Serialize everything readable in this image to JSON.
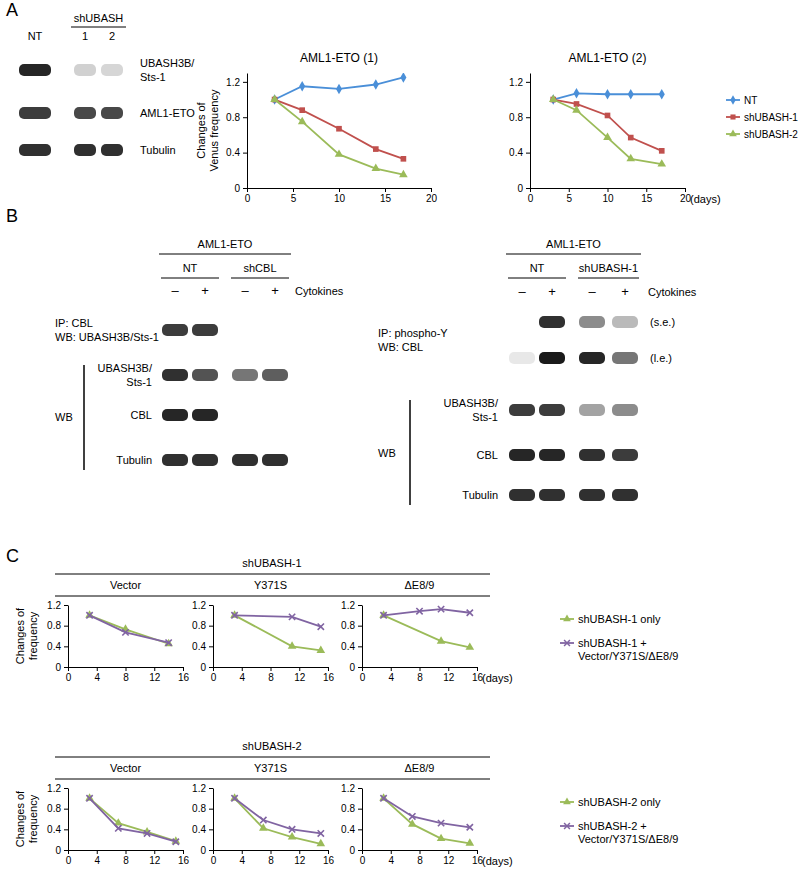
{
  "panel_labels": [
    "A",
    "B",
    "C"
  ],
  "blots": [
    {
      "groups": [
        {
          "label": "NT",
          "lanes": [
            0
          ]
        },
        {
          "label": "shUBASH",
          "lanes": [
            1,
            2
          ],
          "sublabels": [
            "1",
            "2"
          ]
        }
      ],
      "rows": [
        {
          "label": "UBASH3B/\nSts-1",
          "bands": [
            0.95,
            0.2,
            0.18
          ]
        },
        {
          "label": "AML1-ETO",
          "bands": [
            0.85,
            0.8,
            0.8
          ]
        },
        {
          "label": "Tubulin",
          "bands": [
            0.9,
            0.9,
            0.9
          ]
        }
      ]
    },
    {
      "header": "AML1-ETO",
      "groups": [
        {
          "label": "NT",
          "lanes": [
            0,
            1
          ]
        },
        {
          "label": "shCBL",
          "lanes": [
            2,
            3
          ]
        }
      ],
      "treatments": [
        "–",
        "+",
        "–",
        "+"
      ],
      "treatment_label": "Cytokines",
      "rows": [
        {
          "bands": [
            0.85,
            0.85,
            0,
            0
          ]
        },
        {
          "label": "UBASH3B/\nSts-1",
          "bands": [
            0.9,
            0.75,
            0.6,
            0.7
          ]
        },
        {
          "label": "CBL",
          "bands": [
            0.95,
            0.95,
            0,
            0
          ]
        },
        {
          "label": "Tubulin",
          "bands": [
            0.9,
            0.9,
            0.9,
            0.9
          ]
        }
      ],
      "row_groups": [
        {
          "label": "IP: CBL\nWB: UBASH3B/Sts-1",
          "rows": [
            0
          ]
        },
        {
          "label": "WB",
          "rows": [
            1,
            2,
            3
          ]
        }
      ]
    },
    {
      "header": "AML1-ETO",
      "groups": [
        {
          "label": "NT",
          "lanes": [
            0,
            1
          ]
        },
        {
          "label": "shUBASH-1",
          "lanes": [
            2,
            3
          ]
        }
      ],
      "treatments": [
        "–",
        "+",
        "–",
        "+"
      ],
      "treatment_label": "Cytokines",
      "rows": [
        {
          "tag": "(s.e.)",
          "bands": [
            0,
            0.9,
            0.5,
            0.3
          ]
        },
        {
          "tag": "(l.e.)",
          "bands": [
            0.1,
            1,
            0.95,
            0.6
          ]
        },
        {
          "label": "UBASH3B/\nSts-1",
          "bands": [
            0.85,
            0.85,
            0.4,
            0.5
          ]
        },
        {
          "label": "CBL",
          "bands": [
            0.95,
            0.95,
            0.9,
            0.85
          ]
        },
        {
          "label": "Tubulin",
          "bands": [
            0.9,
            0.9,
            0.9,
            0.9
          ]
        }
      ],
      "row_groups": [
        {
          "label": "IP: phospho-Y\nWB: CBL",
          "rows": [
            0,
            1
          ]
        },
        {
          "label": "WB",
          "rows": [
            2,
            3,
            4
          ]
        }
      ]
    }
  ],
  "panel_c": {
    "groups": [
      "shUBASH-1",
      "shUBASH-2"
    ]
  },
  "chart_data": [
    {
      "type": "line",
      "title": "AML1-ETO (1)",
      "ylabel": "Changes of\nVenus frequency",
      "x": [
        3,
        6,
        10,
        14,
        17
      ],
      "xlim": [
        0,
        20
      ],
      "xticks": [
        0,
        5,
        10,
        15,
        20
      ],
      "ylim": [
        0,
        1.3
      ],
      "yticks": [
        0,
        0.4,
        0.8,
        1.2
      ],
      "series": [
        {
          "color": "#4a8fd8",
          "marker": "diamond",
          "values": [
            1.0,
            1.15,
            1.12,
            1.17,
            1.25
          ]
        },
        {
          "color": "#c0504d",
          "marker": "square",
          "values": [
            1.0,
            0.88,
            0.67,
            0.44,
            0.33
          ]
        },
        {
          "color": "#9bbb59",
          "marker": "triangle",
          "values": [
            1.0,
            0.75,
            0.38,
            0.22,
            0.15
          ]
        }
      ]
    },
    {
      "type": "line",
      "title": "AML1-ETO (2)",
      "xlabel": "(days)",
      "x": [
        3,
        6,
        10,
        13,
        17
      ],
      "xlim": [
        0,
        20
      ],
      "xticks": [
        0,
        5,
        10,
        15,
        20
      ],
      "ylim": [
        0,
        1.3
      ],
      "yticks": [
        0,
        0.4,
        0.8,
        1.2
      ],
      "legend": "right",
      "series": [
        {
          "name": "NT",
          "color": "#4a8fd8",
          "marker": "diamond",
          "values": [
            1.0,
            1.07,
            1.06,
            1.06,
            1.06
          ]
        },
        {
          "name": "shUBASH-1",
          "color": "#c0504d",
          "marker": "square",
          "values": [
            1.0,
            0.95,
            0.82,
            0.57,
            0.42
          ]
        },
        {
          "name": "shUBASH-2",
          "color": "#9bbb59",
          "marker": "triangle",
          "values": [
            1.0,
            0.88,
            0.57,
            0.33,
            0.27
          ]
        }
      ]
    },
    {
      "type": "line",
      "title": "Vector",
      "ylabel": "Changes of\nfrequency",
      "xlim": [
        0,
        16
      ],
      "xticks": [
        0,
        4,
        8,
        12,
        16
      ],
      "ylim": [
        0,
        1.2
      ],
      "yticks": [
        0,
        0.4,
        0.8,
        1.2
      ],
      "series": [
        {
          "color": "#9bbb59",
          "marker": "triangle",
          "x": [
            3,
            8,
            14
          ],
          "values": [
            1.0,
            0.73,
            0.45
          ]
        },
        {
          "color": "#8064a2",
          "marker": "x",
          "x": [
            3,
            8,
            14
          ],
          "values": [
            1.0,
            0.67,
            0.47
          ]
        }
      ]
    },
    {
      "type": "line",
      "title": "Y371S",
      "xlim": [
        0,
        16
      ],
      "xticks": [
        0,
        4,
        8,
        12,
        16
      ],
      "ylim": [
        0,
        1.2
      ],
      "yticks": [
        0,
        0.4,
        0.8,
        1.2
      ],
      "series": [
        {
          "color": "#9bbb59",
          "marker": "triangle",
          "x": [
            3,
            11,
            15
          ],
          "values": [
            1.0,
            0.4,
            0.32
          ]
        },
        {
          "color": "#8064a2",
          "marker": "x",
          "x": [
            3,
            11,
            15
          ],
          "values": [
            1.0,
            0.97,
            0.78
          ]
        }
      ]
    },
    {
      "type": "line",
      "title": "ΔE8/9",
      "xlabel": "(days)",
      "xlim": [
        0,
        16
      ],
      "xticks": [
        0,
        4,
        8,
        12,
        16
      ],
      "ylim": [
        0,
        1.2
      ],
      "yticks": [
        0,
        0.4,
        0.8,
        1.2
      ],
      "legend": "right",
      "series": [
        {
          "name": "shUBASH-1 only",
          "color": "#9bbb59",
          "marker": "triangle",
          "x": [
            3,
            11,
            15
          ],
          "values": [
            1.0,
            0.5,
            0.38
          ]
        },
        {
          "name": "shUBASH-1 +\nVector/Y371S/ΔE8/9",
          "color": "#8064a2",
          "marker": "x",
          "x": [
            3,
            8,
            11,
            15
          ],
          "values": [
            1.0,
            1.08,
            1.12,
            1.05
          ]
        }
      ]
    },
    {
      "type": "line",
      "title": "Vector",
      "ylabel": "Changes of\nfrequency",
      "xlim": [
        0,
        16
      ],
      "xticks": [
        0,
        4,
        8,
        12,
        16
      ],
      "ylim": [
        0,
        1.2
      ],
      "yticks": [
        0,
        0.4,
        0.8,
        1.2
      ],
      "series": [
        {
          "color": "#9bbb59",
          "marker": "triangle",
          "x": [
            3,
            7,
            11,
            15
          ],
          "values": [
            1.0,
            0.52,
            0.35,
            0.17
          ]
        },
        {
          "color": "#8064a2",
          "marker": "x",
          "x": [
            3,
            7,
            11,
            15
          ],
          "values": [
            1.0,
            0.42,
            0.32,
            0.16
          ]
        }
      ]
    },
    {
      "type": "line",
      "title": "Y371S",
      "xlim": [
        0,
        16
      ],
      "xticks": [
        0,
        4,
        8,
        12,
        16
      ],
      "ylim": [
        0,
        1.2
      ],
      "yticks": [
        0,
        0.4,
        0.8,
        1.2
      ],
      "series": [
        {
          "color": "#9bbb59",
          "marker": "triangle",
          "x": [
            3,
            7,
            11,
            15
          ],
          "values": [
            1.0,
            0.42,
            0.25,
            0.12
          ]
        },
        {
          "color": "#8064a2",
          "marker": "x",
          "x": [
            3,
            7,
            11,
            15
          ],
          "values": [
            1.0,
            0.58,
            0.4,
            0.32
          ]
        }
      ]
    },
    {
      "type": "line",
      "title": "ΔE8/9",
      "xlabel": "(days)",
      "xlim": [
        0,
        16
      ],
      "xticks": [
        0,
        4,
        8,
        12,
        16
      ],
      "ylim": [
        0,
        1.2
      ],
      "yticks": [
        0,
        0.4,
        0.8,
        1.2
      ],
      "legend": "right",
      "series": [
        {
          "name": "shUBASH-2 only",
          "color": "#9bbb59",
          "marker": "triangle",
          "x": [
            3,
            7,
            11,
            15
          ],
          "values": [
            1.0,
            0.5,
            0.22,
            0.13
          ]
        },
        {
          "name": "shUBASH-2 +\nVector/Y371S/ΔE8/9",
          "color": "#8064a2",
          "marker": "x",
          "x": [
            3,
            7,
            11,
            15
          ],
          "values": [
            1.0,
            0.65,
            0.52,
            0.44
          ]
        }
      ]
    }
  ]
}
